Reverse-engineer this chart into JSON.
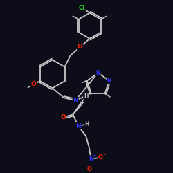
{
  "background_color": "#0d0d1a",
  "bond_color": "#c8c8c8",
  "atom_colors": {
    "N": "#3333ff",
    "O": "#ff2200",
    "Cl": "#22cc22",
    "H": "#c8c8c8"
  },
  "figsize": [
    2.5,
    2.5
  ],
  "dpi": 100
}
